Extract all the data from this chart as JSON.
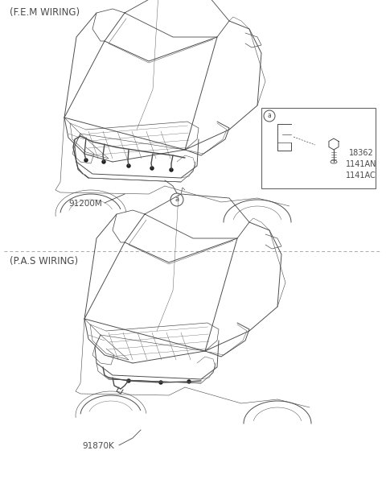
{
  "bg_color": "#ffffff",
  "line_color": "#4a4a4a",
  "dashed_line_color": "#999999",
  "title_top": "(F.E.M WIRING)",
  "title_bottom": "(P.A.S WIRING)",
  "label_top_car": "91200M",
  "label_box_parts": "18362\n1141AN\n1141AC",
  "label_bottom_car": "91870K",
  "fig_width": 4.8,
  "fig_height": 6.26,
  "dpi": 100,
  "font_size_title": 8.5,
  "font_size_label": 7.5,
  "font_size_box": 7
}
